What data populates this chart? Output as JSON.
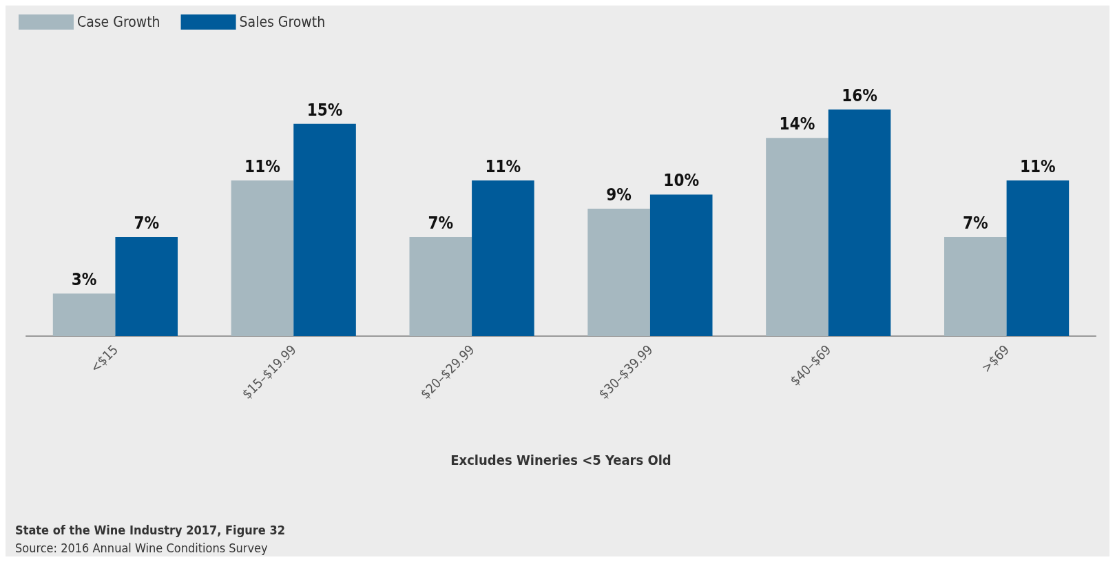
{
  "chart_data": {
    "type": "bar",
    "xlabel": "Excludes Wineries <5 Years Old",
    "categories": [
      "<$15",
      "$15–$19.99",
      "$20–$29.99",
      "$30–$39.99",
      "$40–$69",
      ">$69"
    ],
    "series": [
      {
        "name": "Case Growth",
        "color": "#a6b8c0",
        "values": [
          3,
          11,
          7,
          9,
          14,
          7
        ],
        "value_labels": [
          "3%",
          "11%",
          "7%",
          "9%",
          "14%",
          "7%"
        ]
      },
      {
        "name": "Sales Growth",
        "color": "#005b9a",
        "values": [
          7,
          15,
          11,
          10,
          16,
          11
        ],
        "value_labels": [
          "7%",
          "15%",
          "11%",
          "10%",
          "16%",
          "11%"
        ]
      }
    ],
    "legend": "top left",
    "annotations": [
      "State of the Wine Industry 2017, Figure 32",
      "Source: 2016 Annual Wine Conditions Survey"
    ]
  }
}
